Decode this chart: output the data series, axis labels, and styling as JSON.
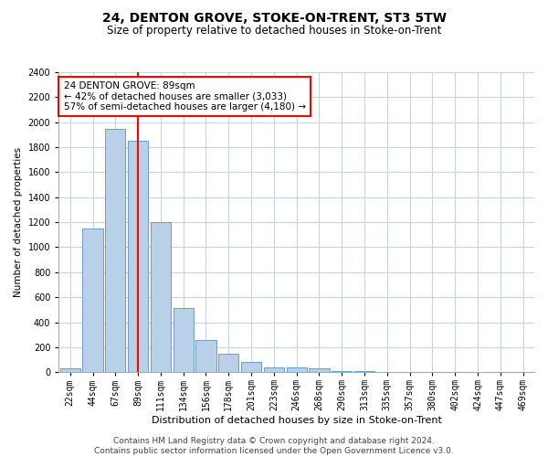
{
  "title": "24, DENTON GROVE, STOKE-ON-TRENT, ST3 5TW",
  "subtitle": "Size of property relative to detached houses in Stoke-on-Trent",
  "xlabel": "Distribution of detached houses by size in Stoke-on-Trent",
  "ylabel": "Number of detached properties",
  "categories": [
    "22sqm",
    "44sqm",
    "67sqm",
    "89sqm",
    "111sqm",
    "134sqm",
    "156sqm",
    "178sqm",
    "201sqm",
    "223sqm",
    "246sqm",
    "268sqm",
    "290sqm",
    "313sqm",
    "335sqm",
    "357sqm",
    "380sqm",
    "402sqm",
    "424sqm",
    "447sqm",
    "469sqm"
  ],
  "values": [
    30,
    1150,
    1950,
    1850,
    1200,
    510,
    260,
    150,
    80,
    40,
    35,
    30,
    10,
    10,
    5,
    5,
    5,
    5,
    5,
    5,
    5
  ],
  "bar_color": "#b8d0e8",
  "bar_edge_color": "#6090c0",
  "red_line_index": 3,
  "annotation_line1": "24 DENTON GROVE: 89sqm",
  "annotation_line2": "← 42% of detached houses are smaller (3,033)",
  "annotation_line3": "57% of semi-detached houses are larger (4,180) →",
  "annotation_box_color": "white",
  "annotation_box_edge_color": "red",
  "ylim": [
    0,
    2400
  ],
  "yticks": [
    0,
    200,
    400,
    600,
    800,
    1000,
    1200,
    1400,
    1600,
    1800,
    2000,
    2200,
    2400
  ],
  "grid_color": "#c8d4e4",
  "footer_line1": "Contains HM Land Registry data © Crown copyright and database right 2024.",
  "footer_line2": "Contains public sector information licensed under the Open Government Licence v3.0.",
  "title_fontsize": 10,
  "subtitle_fontsize": 8.5,
  "xlabel_fontsize": 8,
  "ylabel_fontsize": 7.5,
  "tick_fontsize": 7,
  "annotation_fontsize": 7.5,
  "footer_fontsize": 6.5
}
